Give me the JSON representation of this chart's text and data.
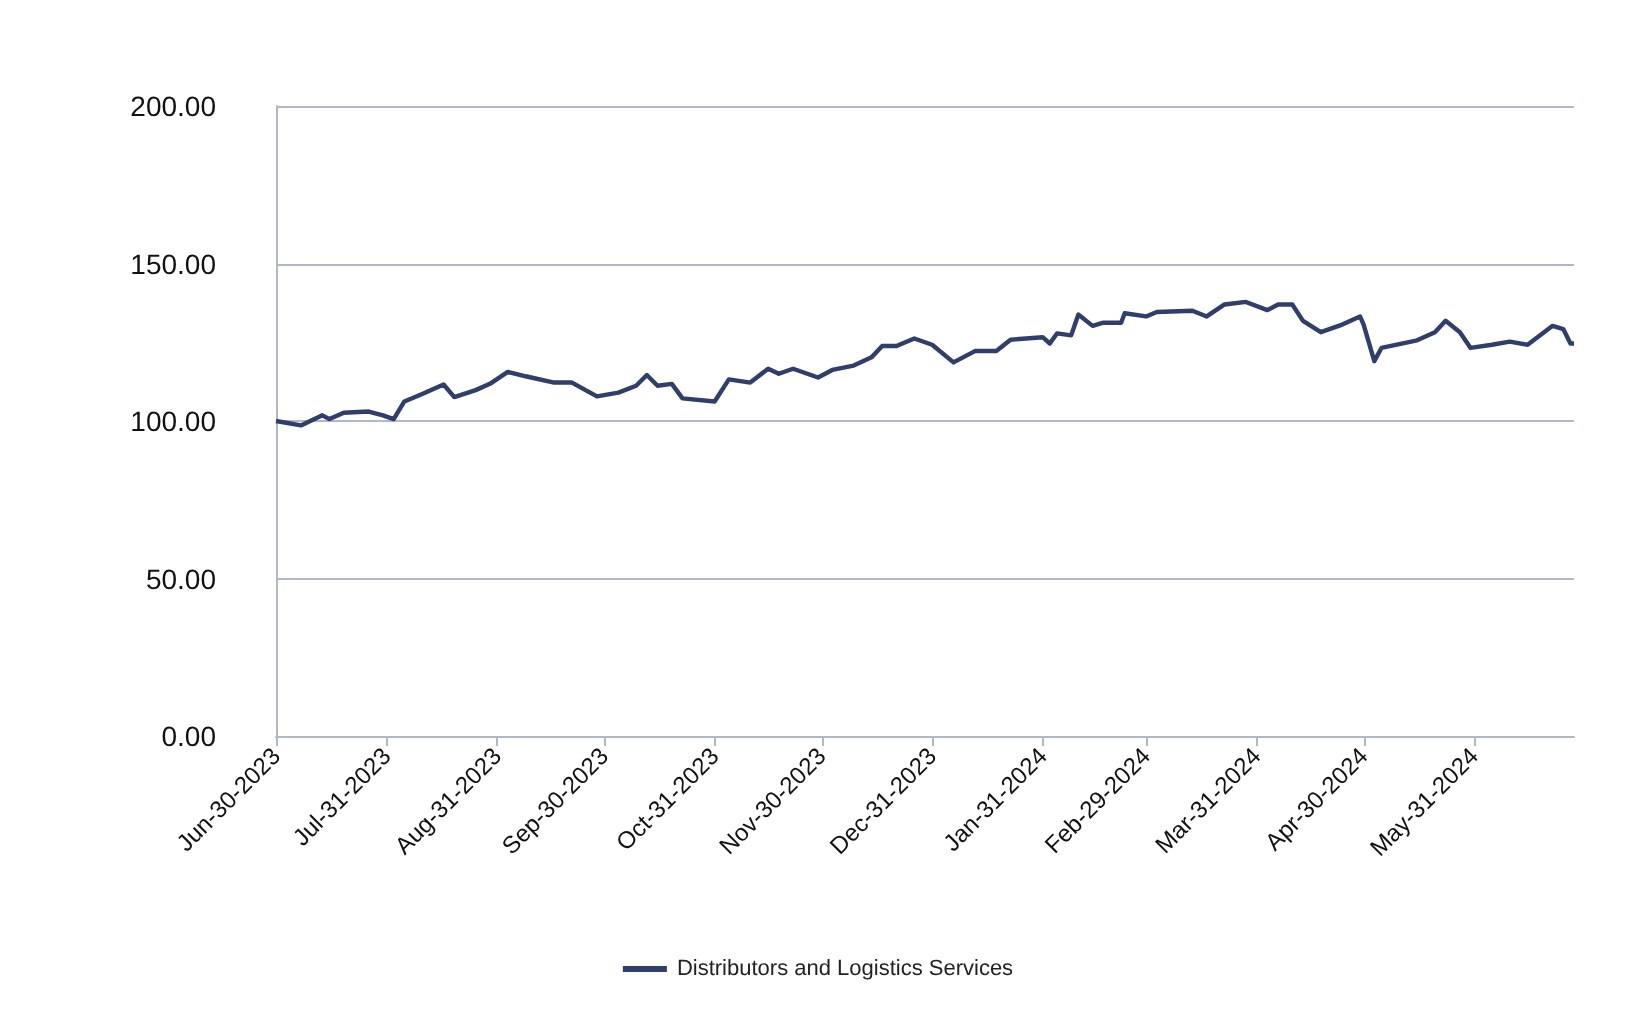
{
  "chart_data": {
    "type": "line",
    "x": [
      "2023-06-30",
      "2023-07-07",
      "2023-07-13",
      "2023-07-15",
      "2023-07-19",
      "2023-07-26",
      "2023-07-30",
      "2023-08-02",
      "2023-08-05",
      "2023-08-10",
      "2023-08-16",
      "2023-08-19",
      "2023-08-25",
      "2023-08-29",
      "2023-09-03",
      "2023-09-08",
      "2023-09-16",
      "2023-09-21",
      "2023-09-28",
      "2023-10-04",
      "2023-10-09",
      "2023-10-12",
      "2023-10-15",
      "2023-10-19",
      "2023-10-22",
      "2023-10-31",
      "2023-11-04",
      "2023-11-10",
      "2023-11-15",
      "2023-11-18",
      "2023-11-22",
      "2023-11-29",
      "2023-12-03",
      "2023-12-09",
      "2023-12-14",
      "2023-12-17",
      "2023-12-21",
      "2023-12-26",
      "2023-12-31",
      "2024-01-06",
      "2024-01-12",
      "2024-01-18",
      "2024-01-22",
      "2024-01-31",
      "2024-02-02",
      "2024-02-04",
      "2024-02-08",
      "2024-02-10",
      "2024-02-14",
      "2024-02-17",
      "2024-02-22",
      "2024-02-23",
      "2024-02-29",
      "2024-03-03",
      "2024-03-13",
      "2024-03-17",
      "2024-03-22",
      "2024-03-28",
      "2024-04-03",
      "2024-04-06",
      "2024-04-10",
      "2024-04-13",
      "2024-04-18",
      "2024-04-24",
      "2024-04-29",
      "2024-04-30",
      "2024-05-03",
      "2024-05-05",
      "2024-05-15",
      "2024-05-20",
      "2024-05-23",
      "2024-05-27",
      "2024-05-30",
      "2024-06-05",
      "2024-06-10",
      "2024-06-15",
      "2024-06-22",
      "2024-06-25",
      "2024-06-27",
      "2024-06-28"
    ],
    "series": [
      {
        "name": "Distributors and Logistics Services",
        "color": "#2f3e6b",
        "values": [
          100,
          98.6,
          101.8,
          100.6,
          102.6,
          103,
          101.8,
          100.6,
          106.2,
          108.6,
          111.6,
          107.6,
          109.8,
          111.8,
          115.6,
          114.2,
          112.2,
          112.2,
          107.8,
          109,
          111.2,
          114.6,
          111.2,
          111.8,
          107.2,
          106.2,
          113.2,
          112.2,
          116.6,
          115,
          116.6,
          113.8,
          116.2,
          117.6,
          120.2,
          123.8,
          123.8,
          126.2,
          124.2,
          118.6,
          122.2,
          122.2,
          125.8,
          126.6,
          124.6,
          127.8,
          127.2,
          133.8,
          130.2,
          131.2,
          131.2,
          134.2,
          133.2,
          134.6,
          135,
          133.2,
          137,
          137.8,
          135.2,
          137,
          137,
          131.8,
          128.2,
          130.6,
          133.2,
          130.6,
          119,
          123.2,
          125.6,
          128.2,
          131.8,
          128.2,
          123.2,
          124.2,
          125.2,
          124.2,
          130.2,
          129.2,
          124.6,
          124.6
        ]
      }
    ],
    "xlim": [
      "2023-06-30",
      "2024-06-28"
    ],
    "xticks": [
      {
        "value": "2023-06-30",
        "label": "Jun-30-2023"
      },
      {
        "value": "2023-07-31",
        "label": "Jul-31-2023"
      },
      {
        "value": "2023-08-31",
        "label": "Aug-31-2023"
      },
      {
        "value": "2023-09-30",
        "label": "Sep-30-2023"
      },
      {
        "value": "2023-10-31",
        "label": "Oct-31-2023"
      },
      {
        "value": "2023-11-30",
        "label": "Nov-30-2023"
      },
      {
        "value": "2023-12-31",
        "label": "Dec-31-2023"
      },
      {
        "value": "2024-01-31",
        "label": "Jan-31-2024"
      },
      {
        "value": "2024-02-29",
        "label": "Feb-29-2024"
      },
      {
        "value": "2024-03-31",
        "label": "Mar-31-2024"
      },
      {
        "value": "2024-04-30",
        "label": "Apr-30-2024"
      },
      {
        "value": "2024-05-31",
        "label": "May-31-2024"
      }
    ],
    "ylim": [
      0,
      200
    ],
    "yticks": [
      {
        "value": 0,
        "label": "0.00"
      },
      {
        "value": 50,
        "label": "50.00"
      },
      {
        "value": 100,
        "label": "100.00"
      },
      {
        "value": 150,
        "label": "150.00"
      },
      {
        "value": 200,
        "label": "200.00"
      }
    ],
    "grid": "y",
    "legend": "bottom",
    "marker": "none",
    "line_style": "solid"
  }
}
